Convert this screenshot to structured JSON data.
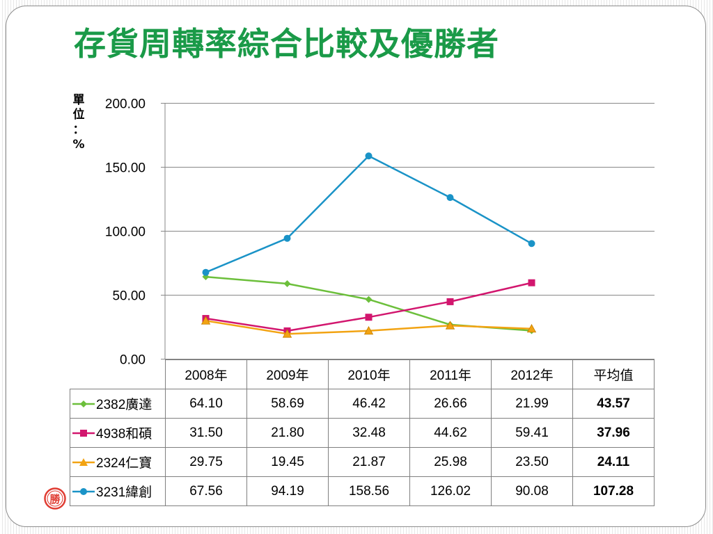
{
  "slide": {
    "title": "存貨周轉率綜合比較及優勝者",
    "unit_label": [
      "單",
      "位",
      "：",
      "%"
    ],
    "winner_badge": "勝"
  },
  "colors": {
    "title": "#1a9a48",
    "badge": "#e03c32",
    "gridline": "#878787"
  },
  "chart_data": {
    "type": "line",
    "categories": [
      "2008年",
      "2009年",
      "2010年",
      "2011年",
      "2012年"
    ],
    "ylim": [
      0,
      200
    ],
    "ytick_step": 50,
    "ytick_labels": [
      "0.00",
      "50.00",
      "100.00",
      "150.00",
      "200.00"
    ],
    "ylabel": "單位：%",
    "grid": true,
    "series": [
      {
        "name": "2382廣達",
        "color": "#6cbf3b",
        "marker": "diamond",
        "values": [
          64.1,
          58.69,
          46.42,
          26.66,
          21.99
        ]
      },
      {
        "name": "4938和碩",
        "color": "#d2166e",
        "marker": "square",
        "values": [
          31.5,
          21.8,
          32.48,
          44.62,
          59.41
        ]
      },
      {
        "name": "2324仁寶",
        "color": "#f2a312",
        "marker": "triangle",
        "values": [
          29.75,
          19.45,
          21.87,
          25.98,
          23.5
        ]
      },
      {
        "name": "3231緯創",
        "color": "#1a93c7",
        "marker": "circle",
        "values": [
          67.56,
          94.19,
          158.56,
          126.02,
          90.08
        ]
      }
    ]
  },
  "table": {
    "headers": [
      "2008年",
      "2009年",
      "2010年",
      "2011年",
      "2012年",
      "平均值"
    ],
    "rows": [
      {
        "label": "2382廣達",
        "values": [
          "64.10",
          "58.69",
          "46.42",
          "26.66",
          "21.99"
        ],
        "average": "43.57"
      },
      {
        "label": "4938和碩",
        "values": [
          "31.50",
          "21.80",
          "32.48",
          "44.62",
          "59.41"
        ],
        "average": "37.96"
      },
      {
        "label": "2324仁寶",
        "values": [
          "29.75",
          "19.45",
          "21.87",
          "25.98",
          "23.50"
        ],
        "average": "24.11"
      },
      {
        "label": "3231緯創",
        "values": [
          "67.56",
          "94.19",
          "158.56",
          "126.02",
          "90.08"
        ],
        "average": "107.28"
      }
    ]
  }
}
